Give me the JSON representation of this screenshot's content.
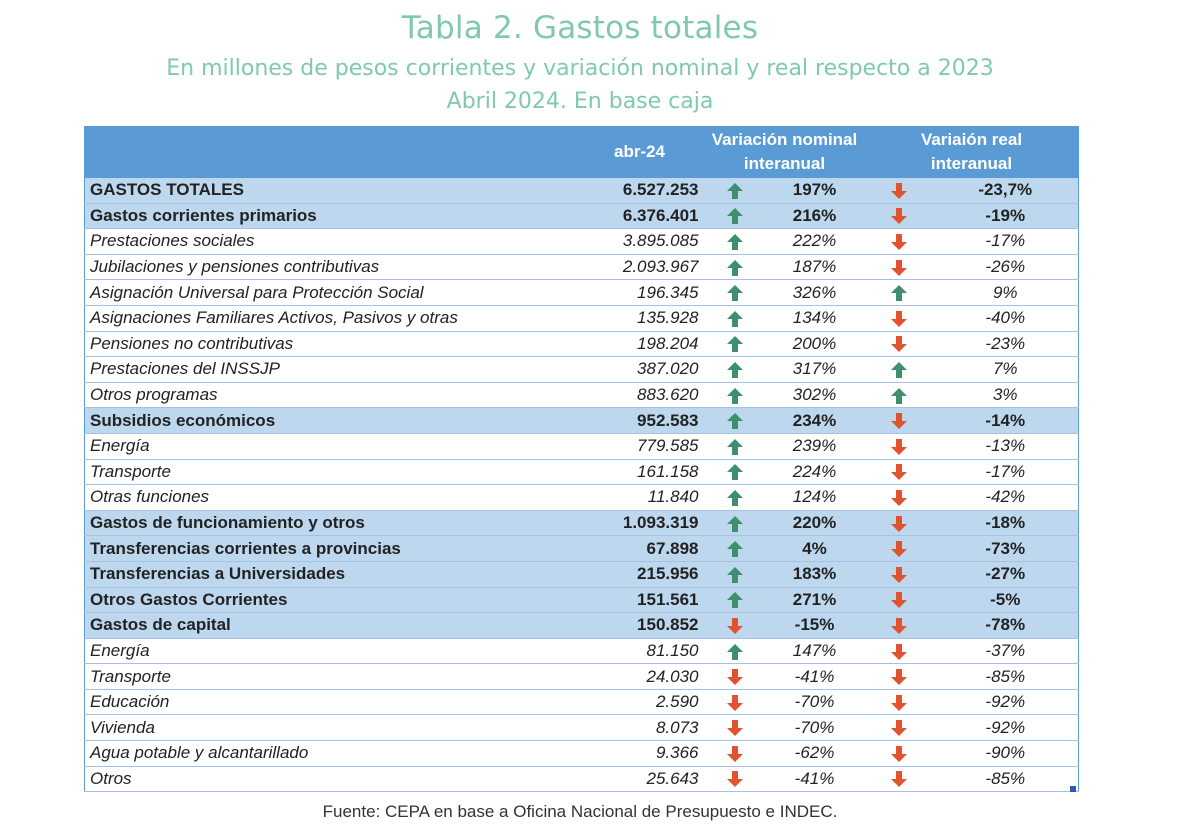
{
  "title": "Tabla 2. Gastos totales",
  "subtitle": "En millones de pesos corrientes y variación nominal y real respecto a 2023",
  "subtitle2": "Abril 2024. En base caja",
  "headers": {
    "col1": "abr-24",
    "col2_line1": "Variación nominal",
    "col2_line2": "interanual",
    "col3_line1": "Variaión real",
    "col3_line2": "interanual"
  },
  "rows": [
    {
      "label": "GASTOS TOTALES",
      "value": "6.527.253",
      "nominal_dir": "up",
      "nominal": "197%",
      "real_dir": "down",
      "real": "-23,7%",
      "style": "bold"
    },
    {
      "label": "Gastos corrientes primarios",
      "value": "6.376.401",
      "nominal_dir": "up",
      "nominal": "216%",
      "real_dir": "down",
      "real": "-19%",
      "style": "bold indent"
    },
    {
      "label": "Prestaciones sociales",
      "value": "3.895.085",
      "nominal_dir": "up",
      "nominal": "222%",
      "real_dir": "down",
      "real": "-17%",
      "style": "normal medium"
    },
    {
      "label": "Jubilaciones y pensiones contributivas",
      "value": "2.093.967",
      "nominal_dir": "up",
      "nominal": "187%",
      "real_dir": "down",
      "real": "-26%",
      "style": "normal small"
    },
    {
      "label": "Asignación Universal para Protección Social",
      "value": "196.345",
      "nominal_dir": "up",
      "nominal": "326%",
      "real_dir": "up",
      "real": "9%",
      "style": "normal small"
    },
    {
      "label": "Asignaciones Familiares Activos, Pasivos y otras",
      "value": "135.928",
      "nominal_dir": "up",
      "nominal": "134%",
      "real_dir": "down",
      "real": "-40%",
      "style": "normal small"
    },
    {
      "label": "Pensiones no contributivas",
      "value": "198.204",
      "nominal_dir": "up",
      "nominal": "200%",
      "real_dir": "down",
      "real": "-23%",
      "style": "normal small"
    },
    {
      "label": "Prestaciones del INSSJP",
      "value": "387.020",
      "nominal_dir": "up",
      "nominal": "317%",
      "real_dir": "up",
      "real": "7%",
      "style": "normal small"
    },
    {
      "label": "Otros programas",
      "value": "883.620",
      "nominal_dir": "up",
      "nominal": "302%",
      "real_dir": "up",
      "real": "3%",
      "style": "normal small"
    },
    {
      "label": "Subsidios económicos",
      "value": "952.583",
      "nominal_dir": "up",
      "nominal": "234%",
      "real_dir": "down",
      "real": "-14%",
      "style": "bold"
    },
    {
      "label": "Energía",
      "value": "779.585",
      "nominal_dir": "up",
      "nominal": "239%",
      "real_dir": "down",
      "real": "-13%",
      "style": "normal small"
    },
    {
      "label": "Transporte",
      "value": "161.158",
      "nominal_dir": "up",
      "nominal": "224%",
      "real_dir": "down",
      "real": "-17%",
      "style": "normal small"
    },
    {
      "label": "Otras funciones",
      "value": "11.840",
      "nominal_dir": "up",
      "nominal": "124%",
      "real_dir": "down",
      "real": "-42%",
      "style": "normal small"
    },
    {
      "label": "Gastos de funcionamiento y otros",
      "value": "1.093.319",
      "nominal_dir": "up",
      "nominal": "220%",
      "real_dir": "down",
      "real": "-18%",
      "style": "bold"
    },
    {
      "label": "Transferencias corrientes a provincias",
      "value": "67.898",
      "nominal_dir": "up",
      "nominal": "4%",
      "real_dir": "down",
      "real": "-73%",
      "style": "bold"
    },
    {
      "label": "Transferencias a Universidades",
      "value": "215.956",
      "nominal_dir": "up",
      "nominal": "183%",
      "real_dir": "down",
      "real": "-27%",
      "style": "bold"
    },
    {
      "label": "Otros Gastos Corrientes",
      "value": "151.561",
      "nominal_dir": "up",
      "nominal": "271%",
      "real_dir": "down",
      "real": "-5%",
      "style": "bold"
    },
    {
      "label": "Gastos de capital",
      "value": "150.852",
      "nominal_dir": "down",
      "nominal": "-15%",
      "real_dir": "down",
      "real": "-78%",
      "style": "bold indent2"
    },
    {
      "label": "Energía",
      "value": "81.150",
      "nominal_dir": "up",
      "nominal": "147%",
      "real_dir": "down",
      "real": "-37%",
      "style": "normal small"
    },
    {
      "label": "Transporte",
      "value": "24.030",
      "nominal_dir": "down",
      "nominal": "-41%",
      "real_dir": "down",
      "real": "-85%",
      "style": "normal small"
    },
    {
      "label": "Educación",
      "value": "2.590",
      "nominal_dir": "down",
      "nominal": "-70%",
      "real_dir": "down",
      "real": "-92%",
      "style": "normal small"
    },
    {
      "label": "Vivienda",
      "value": "8.073",
      "nominal_dir": "down",
      "nominal": "-70%",
      "real_dir": "down",
      "real": "-92%",
      "style": "normal small"
    },
    {
      "label": "Agua potable y alcantarillado",
      "value": "9.366",
      "nominal_dir": "down",
      "nominal": "-62%",
      "real_dir": "down",
      "real": "-90%",
      "style": "normal small"
    },
    {
      "label": "Otros",
      "value": "25.643",
      "nominal_dir": "down",
      "nominal": "-41%",
      "real_dir": "down",
      "real": "-85%",
      "style": "normal small"
    }
  ],
  "colors": {
    "title": "#7fc9ad",
    "header_bg": "#5b9bd5",
    "bold_row_bg": "#bdd7ee",
    "arrow_up": "#3f8f6e",
    "arrow_down": "#e05330"
  },
  "icons": {
    "up": "arrow-up-icon",
    "down": "arrow-down-icon"
  },
  "source": "Fuente: CEPA en base a Oficina Nacional de Presupuesto e INDEC."
}
